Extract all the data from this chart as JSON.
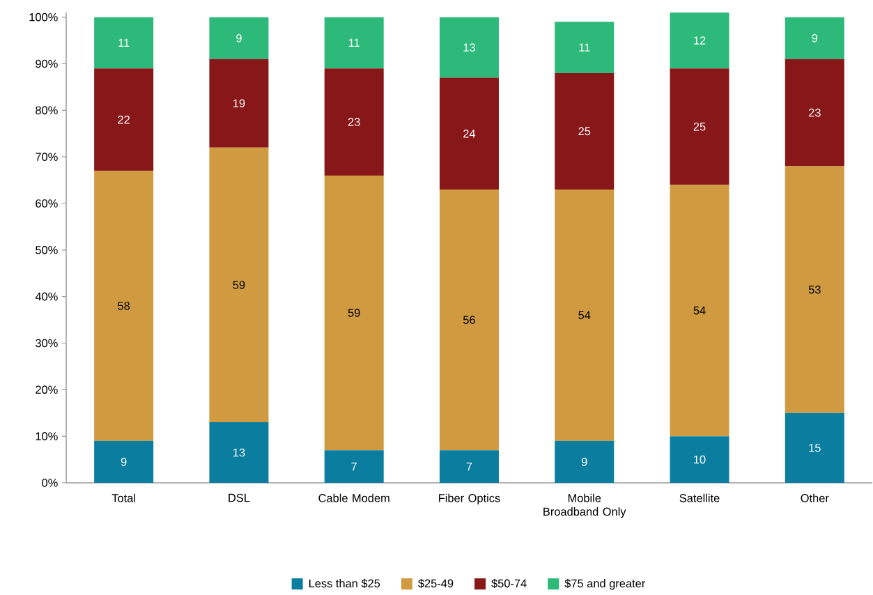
{
  "chart_data": {
    "type": "bar",
    "stacked": true,
    "categories": [
      "Total",
      "DSL",
      "Cable Modem",
      "Fiber Optics",
      "Mobile Broadband Only",
      "Satellite",
      "Other"
    ],
    "series": [
      {
        "name": "Less than $25",
        "color": "#0b7ea0",
        "values": [
          9,
          13,
          7,
          7,
          9,
          10,
          15
        ]
      },
      {
        "name": "$25-49",
        "color": "#d09b40",
        "values": [
          58,
          59,
          59,
          56,
          54,
          54,
          53
        ]
      },
      {
        "name": "$50-74",
        "color": "#881719",
        "values": [
          22,
          19,
          23,
          24,
          25,
          25,
          23
        ]
      },
      {
        "name": "$75 and greater",
        "color": "#2db97a",
        "values": [
          11,
          9,
          11,
          13,
          11,
          12,
          9
        ]
      }
    ],
    "ylim": [
      0,
      101
    ],
    "yticks": [
      {
        "value": 0,
        "label": "0%"
      },
      {
        "value": 10,
        "label": "10%"
      },
      {
        "value": 20,
        "label": "20%"
      },
      {
        "value": 30,
        "label": "30%"
      },
      {
        "value": 40,
        "label": "40%"
      },
      {
        "value": 50,
        "label": "50%"
      },
      {
        "value": 60,
        "label": "60%"
      },
      {
        "value": 70,
        "label": "70%"
      },
      {
        "value": 80,
        "label": "80%"
      },
      {
        "value": 90,
        "label": "90%"
      },
      {
        "value": 100,
        "label": "100%"
      }
    ],
    "data_labels": true,
    "grid": false,
    "legend": "bottom"
  }
}
